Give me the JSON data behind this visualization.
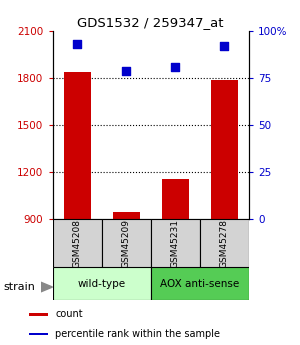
{
  "title": "GDS1532 / 259347_at",
  "samples": [
    "GSM45208",
    "GSM45209",
    "GSM45231",
    "GSM45278"
  ],
  "counts": [
    1840,
    942,
    1155,
    1790
  ],
  "percentiles": [
    93,
    79,
    81,
    92
  ],
  "ylim_left": [
    900,
    2100
  ],
  "ylim_right": [
    0,
    100
  ],
  "yticks_left": [
    900,
    1200,
    1500,
    1800,
    2100
  ],
  "yticks_right": [
    0,
    25,
    50,
    75,
    100
  ],
  "ytick_labels_right": [
    "0",
    "25",
    "50",
    "75",
    "100%"
  ],
  "bar_color": "#cc0000",
  "dot_color": "#0000cc",
  "dot_size": 30,
  "groups": [
    {
      "label": "wild-type",
      "indices": [
        0,
        1
      ],
      "color": "#ccffcc"
    },
    {
      "label": "AOX anti-sense",
      "indices": [
        2,
        3
      ],
      "color": "#55cc55"
    }
  ],
  "strain_label": "strain",
  "legend_items": [
    {
      "color": "#cc0000",
      "label": "count"
    },
    {
      "color": "#0000cc",
      "label": "percentile rank within the sample"
    }
  ],
  "axis_color_left": "#cc0000",
  "axis_color_right": "#0000cc",
  "grid_yticks": [
    1200,
    1500,
    1800
  ],
  "bar_width": 0.55,
  "sample_box_color": "#d3d3d3",
  "title_fontsize": 9.5,
  "tick_fontsize": 7.5,
  "sample_fontsize": 6.5,
  "group_fontsize": 7.5,
  "legend_fontsize": 7,
  "strain_fontsize": 8
}
